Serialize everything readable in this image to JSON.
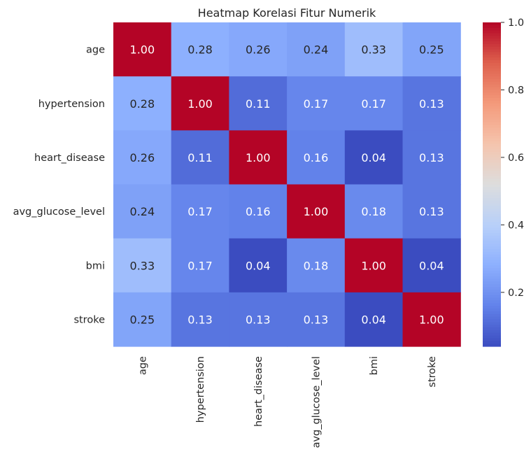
{
  "chart_data": {
    "type": "heatmap",
    "title": "Heatmap Korelasi Fitur Numerik",
    "x_labels": [
      "age",
      "hypertension",
      "heart_disease",
      "avg_glucose_level",
      "bmi",
      "stroke"
    ],
    "y_labels": [
      "age",
      "hypertension",
      "heart_disease",
      "avg_glucose_level",
      "bmi",
      "stroke"
    ],
    "values": [
      [
        1.0,
        0.28,
        0.26,
        0.24,
        0.33,
        0.25
      ],
      [
        0.28,
        1.0,
        0.11,
        0.17,
        0.17,
        0.13
      ],
      [
        0.26,
        0.11,
        1.0,
        0.16,
        0.04,
        0.13
      ],
      [
        0.24,
        0.17,
        0.16,
        1.0,
        0.18,
        0.13
      ],
      [
        0.33,
        0.17,
        0.04,
        0.18,
        1.0,
        0.04
      ],
      [
        0.25,
        0.13,
        0.13,
        0.13,
        0.04,
        1.0
      ]
    ],
    "annotation_format": "0.00",
    "colormap": "coolwarm",
    "colorbar": {
      "min": 0.04,
      "max": 1.0,
      "ticks": [
        0.2,
        0.4,
        0.6,
        0.8,
        1.0
      ],
      "tick_labels": [
        "0.2",
        "0.4",
        "0.6",
        "0.8",
        "1.0"
      ]
    },
    "colors": {
      "low": "#3b4cc0",
      "mid": "#dddddd",
      "high": "#b40426"
    }
  }
}
